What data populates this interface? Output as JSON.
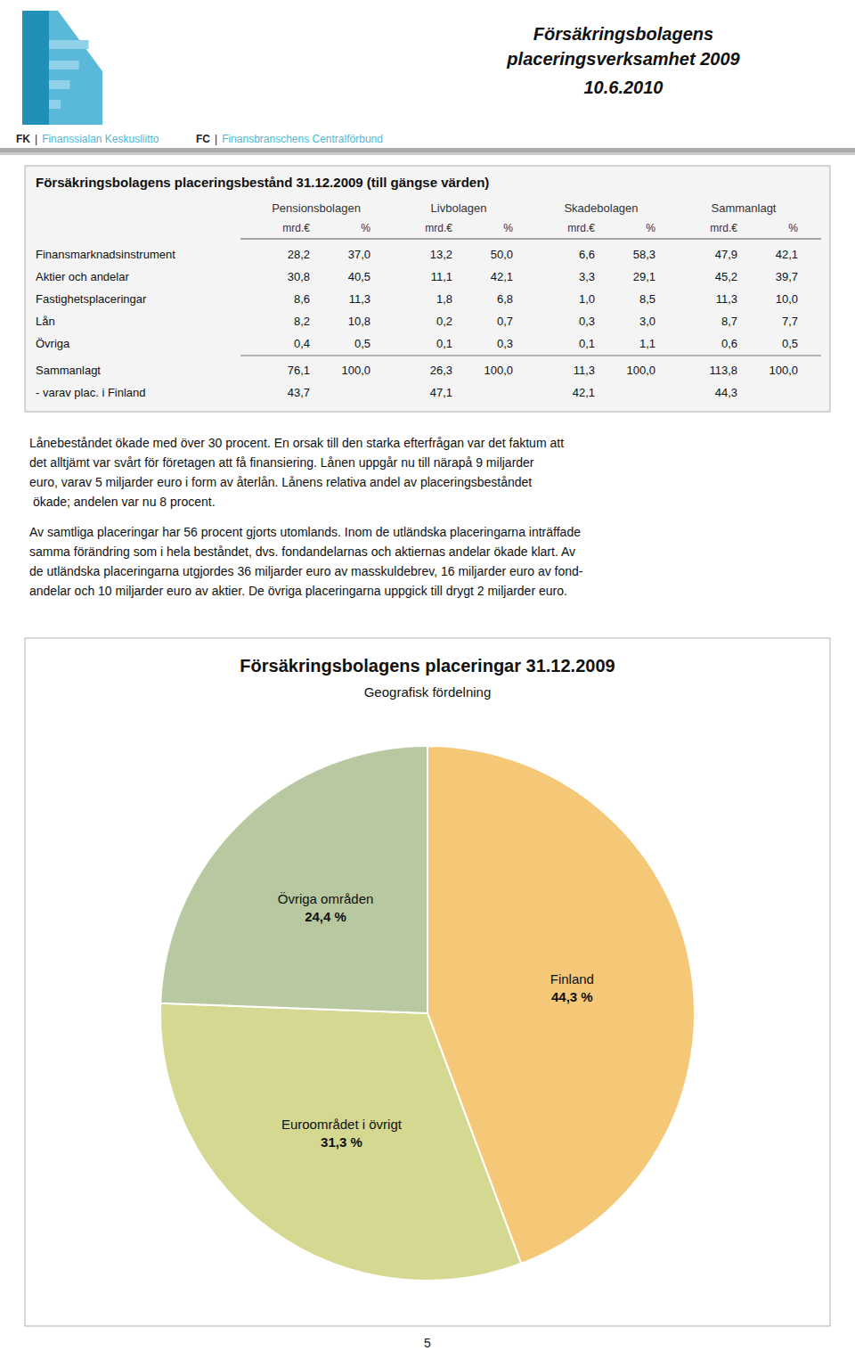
{
  "page": {
    "org": [
      {
        "abbr": "FK",
        "separator": "|",
        "name": "Finanssialan Keskusliitto"
      },
      {
        "abbr": "FC",
        "separator": "|",
        "name": "Finansbranschens Centralförbund"
      }
    ],
    "accent_color": "#4db8d4",
    "header_title": [
      "Försäkringsbolagens",
      "placeringsverksamhet 2009",
      "10.6.2010"
    ],
    "table": {
      "title": "Försäkringsbolagens placeringsbestånd 31.12.2009 (till gängse värden)",
      "col_headers": [
        "Pensionsbolagen",
        "Livbolagen",
        "Skadebolagen",
        "Sammanlagt"
      ],
      "sub_headers": [
        "mrd.€",
        "%"
      ],
      "rows": [
        [
          "Finansmarknadsinstrument",
          "28,2",
          "37,0",
          "13,2",
          "50,0",
          "6,6",
          "58,3",
          "47,9",
          "42,1"
        ],
        [
          "Aktier och andelar",
          "30,8",
          "40,5",
          "11,1",
          "42,1",
          "3,3",
          "29,1",
          "45,2",
          "39,7"
        ],
        [
          "Fastighetsplaceringar",
          "8,6",
          "11,3",
          "1,8",
          "6,8",
          "1,0",
          "8,5",
          "11,3",
          "10,0"
        ],
        [
          "Lån",
          "8,2",
          "10,8",
          "0,2",
          "0,7",
          "0,3",
          "3,0",
          "8,7",
          "7,7"
        ],
        [
          "Övriga",
          "0,4",
          "0,5",
          "0,1",
          "0,3",
          "0,1",
          "1,1",
          "0,6",
          "0,5"
        ]
      ],
      "total_row": [
        "Sammanlagt",
        "76,1",
        "100,0",
        "26,3",
        "100,0",
        "11,3",
        "100,0",
        "113,8",
        "100,0"
      ],
      "finland_row": [
        "- varav plac. i Finland",
        "43,7",
        "47,1",
        "42,1",
        "44,3"
      ]
    },
    "body_text": [
      [
        "Lånebeståndet ökade med över 30 procent. En orsak till den starka efterfrågan var det faktum att",
        "det alltjämt var svårt för företagen att få finansiering. Lånen uppgår nu till närapå 9 miljarder",
        "euro, varav 5 miljarder euro i form av återlån. Lånens relativa andel av placeringsbeståndet",
        " ökade; andelen var nu 8 procent."
      ],
      [
        "Av samtliga placeringar har 56 procent gjorts utomlands. Inom de utländska placeringarna inträffade",
        "samma förändring som i hela beståndet, dvs. fondandelarnas och aktiernas andelar ökade klart. Av",
        "de utländska placeringarna utgjordes 36 miljarder euro av masskuldebrev, 16 miljarder euro av fond-",
        "andelar och 10 miljarder euro av aktier. De övriga placeringarna uppgick till drygt 2 miljarder euro."
      ]
    ],
    "page_number": "5"
  },
  "chart_data": {
    "type": "pie",
    "title": "Försäkringsbolagens placeringar 31.12.2009",
    "subtitle": "Geografisk fördelning",
    "categories": [
      "Finland",
      "Euroområdet i övrigt",
      "Övriga områden"
    ],
    "values": [
      44.3,
      31.3,
      24.4
    ],
    "value_labels": [
      "44,3 %",
      "31,3 %",
      "24,4 %"
    ],
    "colors": [
      "#f5c878",
      "#d4d890",
      "#b8c8a0"
    ],
    "data_labels": true
  }
}
